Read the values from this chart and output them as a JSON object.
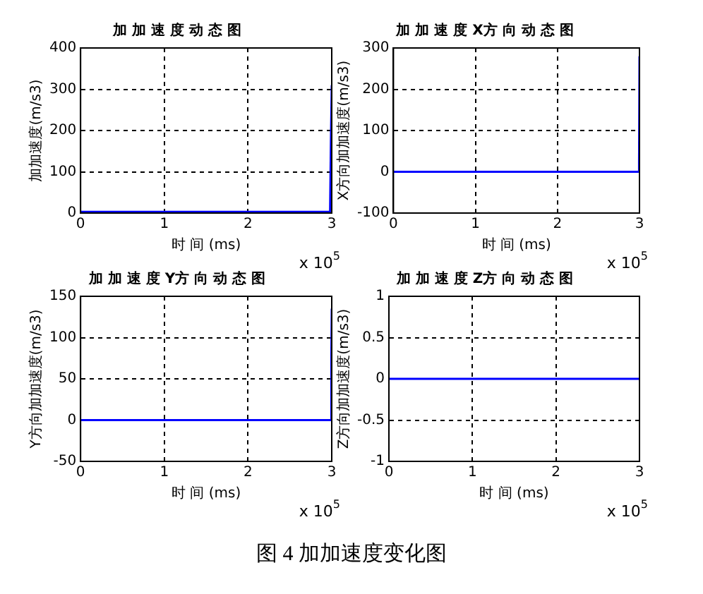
{
  "chart_data": [
    {
      "type": "line",
      "title": "加 加 速 度 动 态 图",
      "xlabel": "时 间 (ms)",
      "ylabel": "加加速度(m/s3)",
      "x": [
        0,
        2.98,
        2.99,
        3
      ],
      "series": [
        {
          "color": "#0000ff",
          "values": [
            3,
            3,
            175,
            310
          ]
        }
      ],
      "xlim": [
        0,
        3
      ],
      "xticks": [
        0,
        1,
        2,
        3
      ],
      "ylim": [
        0,
        400
      ],
      "yticks": [
        0,
        100,
        200,
        300,
        400
      ],
      "grid": true,
      "annotations": [
        "x 10$^{5}$",
        "图 4  加加速度变化图"
      ]
    },
    {
      "type": "line",
      "title": "加 加 速 度 X方 向 动 态 图",
      "xlabel": "时 间 (ms)",
      "ylabel": "X方向加加速度(m/s3)",
      "x": [
        0,
        2.99,
        2.995,
        3
      ],
      "series": [
        {
          "color": "#0000ff",
          "values": [
            0,
            0,
            20,
            280
          ]
        }
      ],
      "xlim": [
        0,
        3
      ],
      "xticks": [
        0,
        1,
        2,
        3
      ],
      "ylim": [
        -100,
        300
      ],
      "yticks": [
        -100,
        0,
        100,
        200,
        300
      ],
      "grid": true,
      "annotations": [
        "x 10$^{5}$"
      ]
    },
    {
      "type": "line",
      "title": "加 加 速 度 Y方 向 动 态 图",
      "xlabel": "时 间 (ms)",
      "ylabel": "Y方向加加速度(m/s3)",
      "x": [
        0,
        2.99,
        2.995,
        3
      ],
      "series": [
        {
          "color": "#0000ff",
          "values": [
            0,
            0,
            77,
            135
          ]
        }
      ],
      "xlim": [
        0,
        3
      ],
      "xticks": [
        0,
        1,
        2,
        3
      ],
      "ylim": [
        -50,
        150
      ],
      "yticks": [
        -50,
        0,
        50,
        100,
        150
      ],
      "grid": true,
      "annotations": [
        "x 10$^{5}$"
      ]
    },
    {
      "type": "line",
      "title": "加 加 速 度 Z方 向 动 态 图",
      "xlabel": "时 间 (ms)",
      "ylabel": "Z方向加加速度(m/s3)",
      "x": [
        0,
        3
      ],
      "series": [
        {
          "color": "#0000ff",
          "values": [
            0,
            0
          ]
        }
      ],
      "xlim": [
        0,
        3
      ],
      "xticks": [
        0,
        1,
        2,
        3
      ],
      "ylim": [
        -1,
        1
      ],
      "yticks": [
        -1,
        -0.5,
        0,
        0.5,
        1
      ],
      "grid": true,
      "annotations": [
        "x 10$^{5}$"
      ]
    }
  ]
}
